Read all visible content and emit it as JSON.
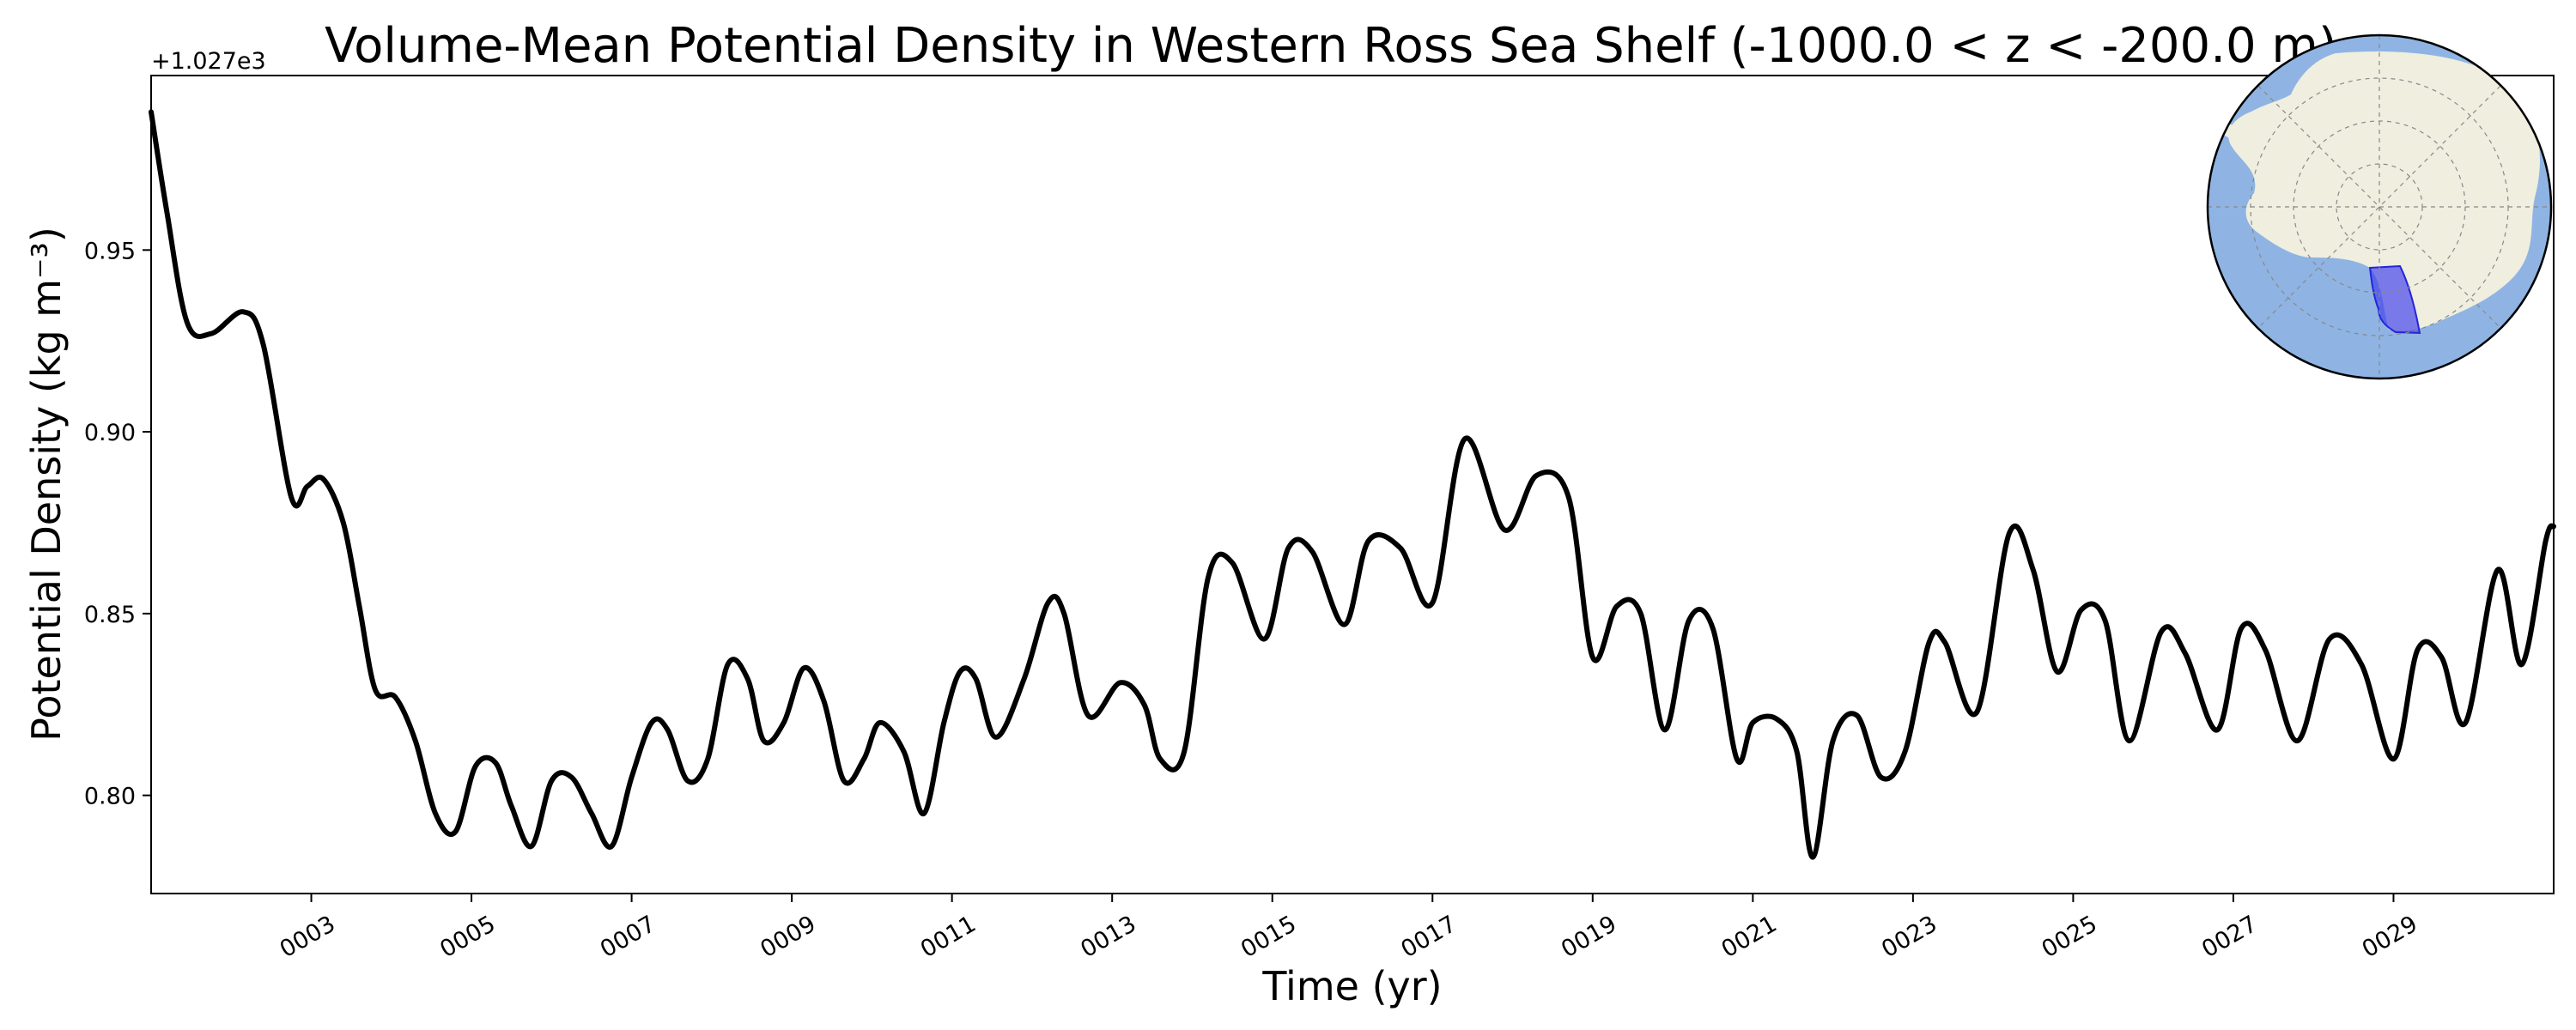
{
  "chart_data": {
    "type": "line",
    "title": "Volume-Mean Potential Density in Western Ross Sea Shelf (-1000.0 < z < -200.0 m)",
    "xlabel": "Time (yr)",
    "ylabel": "Potential Density (kg m⁻³)",
    "y_offset_label": "+1.027e3",
    "xlim": [
      1.0,
      31.0
    ],
    "ylim": [
      0.773,
      0.998
    ],
    "x_ticks": [
      3,
      5,
      7,
      9,
      11,
      13,
      15,
      17,
      19,
      21,
      23,
      25,
      27,
      29
    ],
    "x_tick_labels": [
      "0003",
      "0005",
      "0007",
      "0009",
      "0011",
      "0013",
      "0015",
      "0017",
      "0019",
      "0021",
      "0023",
      "0025",
      "0027",
      "0029"
    ],
    "y_ticks": [
      0.8,
      0.85,
      0.9,
      0.95
    ],
    "y_tick_labels": [
      "0.80",
      "0.85",
      "0.90",
      "0.95"
    ],
    "grid": false,
    "line_color": "#000000",
    "series": [
      {
        "x": [
          1.0,
          1.2,
          1.45,
          1.75,
          2.15,
          2.4,
          2.75,
          2.95,
          3.15,
          3.4,
          3.6,
          3.8,
          4.05,
          4.3,
          4.55,
          4.8,
          5.05,
          5.3,
          5.5,
          5.75,
          6.0,
          6.25,
          6.5,
          6.75,
          7.0,
          7.25,
          7.45,
          7.7,
          7.95,
          8.2,
          8.45,
          8.65,
          8.9,
          9.15,
          9.4,
          9.65,
          9.9,
          10.1,
          10.4,
          10.65,
          10.9,
          11.1,
          11.3,
          11.55,
          11.9,
          12.2,
          12.4,
          12.7,
          13.1,
          13.4,
          13.6,
          13.9,
          14.2,
          14.5,
          14.9,
          15.2,
          15.5,
          15.9,
          16.2,
          16.6,
          17.0,
          17.4,
          17.9,
          18.3,
          18.7,
          19.0,
          19.3,
          19.6,
          19.9,
          20.2,
          20.5,
          20.8,
          21.0,
          21.3,
          21.55,
          21.75,
          22.0,
          22.3,
          22.6,
          22.9,
          23.2,
          23.4,
          23.8,
          24.2,
          24.5,
          24.8,
          25.1,
          25.4,
          25.7,
          26.1,
          26.4,
          26.8,
          27.1,
          27.4,
          27.8,
          28.2,
          28.6,
          29.0,
          29.3,
          29.6,
          29.9,
          30.3,
          30.6,
          30.9,
          31.0
        ],
        "y": [
          0.988,
          0.96,
          0.93,
          0.927,
          0.933,
          0.924,
          0.882,
          0.885,
          0.887,
          0.875,
          0.852,
          0.829,
          0.827,
          0.815,
          0.795,
          0.79,
          0.808,
          0.809,
          0.797,
          0.786,
          0.804,
          0.805,
          0.795,
          0.786,
          0.805,
          0.82,
          0.818,
          0.804,
          0.81,
          0.836,
          0.832,
          0.815,
          0.82,
          0.835,
          0.826,
          0.804,
          0.81,
          0.82,
          0.812,
          0.795,
          0.82,
          0.834,
          0.832,
          0.816,
          0.832,
          0.853,
          0.85,
          0.822,
          0.831,
          0.825,
          0.81,
          0.812,
          0.86,
          0.864,
          0.843,
          0.868,
          0.867,
          0.847,
          0.87,
          0.868,
          0.853,
          0.898,
          0.873,
          0.888,
          0.882,
          0.838,
          0.852,
          0.85,
          0.818,
          0.848,
          0.846,
          0.81,
          0.82,
          0.821,
          0.812,
          0.783,
          0.815,
          0.822,
          0.805,
          0.812,
          0.842,
          0.842,
          0.823,
          0.872,
          0.862,
          0.834,
          0.851,
          0.848,
          0.815,
          0.845,
          0.839,
          0.818,
          0.846,
          0.84,
          0.815,
          0.843,
          0.836,
          0.81,
          0.84,
          0.838,
          0.82,
          0.862,
          0.836,
          0.87,
          0.874
        ]
      }
    ]
  },
  "inset_map": {
    "ocean_color": "#8fb4e3",
    "land_color": "#efeedf",
    "region_color": "#3b3bf0",
    "graticule": true
  }
}
